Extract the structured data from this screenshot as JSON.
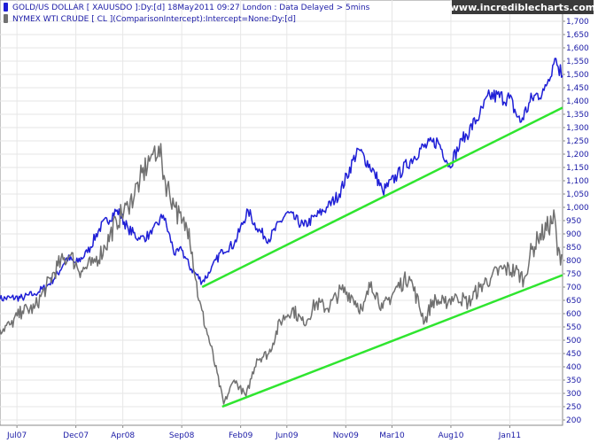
{
  "brand": "www.incrediblecharts.com",
  "chart_data": {
    "type": "line",
    "grid": true,
    "yaxis_position": "right",
    "ylim": [
      180,
      1780
    ],
    "yticks": [
      200,
      250,
      300,
      350,
      400,
      450,
      500,
      550,
      600,
      650,
      700,
      750,
      800,
      850,
      900,
      950,
      1000,
      1050,
      1100,
      1150,
      1200,
      1250,
      1300,
      1350,
      1400,
      1450,
      1500,
      1550,
      1600,
      1650,
      1700
    ],
    "ytick_labels": [
      "200",
      "250",
      "300",
      "350",
      "400",
      "450",
      "500",
      "550",
      "600",
      "650",
      "700",
      "750",
      "800",
      "850",
      "900",
      "950",
      "1,000",
      "1,050",
      "1,100",
      "1,150",
      "1,200",
      "1,250",
      "1,300",
      "1,350",
      "1,400",
      "1,450",
      "1,500",
      "1,550",
      "1,600",
      "1,650",
      "1,700"
    ],
    "x_range": [
      "2007-05-18",
      "2011-05-18"
    ],
    "xtick_labels": [
      "Jul07",
      "Dec07",
      "Apr08",
      "Sep08",
      "Feb09",
      "Jun09",
      "Nov09",
      "Mar10",
      "Aug10",
      "Jan11"
    ],
    "xtick_dates": [
      "2007-07-01",
      "2007-12-01",
      "2008-04-01",
      "2008-09-01",
      "2009-02-01",
      "2009-06-01",
      "2009-11-01",
      "2010-03-01",
      "2010-08-01",
      "2011-01-01"
    ],
    "legend": [
      {
        "label": "GOLD/US DOLLAR [ XAUUSDO ]:Dy:[d]   18May2011 09:27 London : Data Delayed > 5mins",
        "color": "#1f1fd6"
      },
      {
        "label": "NYMEX WTI CRUDE [ CL ](ComparisonIntercept):Intercept=None:Dy:[d]",
        "color": "#707070"
      }
    ],
    "series": [
      {
        "color": "#1f1fd6",
        "points": [
          [
            "2007-05-18",
            655
          ],
          [
            "2007-06-15",
            660
          ],
          [
            "2007-07-15",
            660
          ],
          [
            "2007-08-15",
            675
          ],
          [
            "2007-09-15",
            700
          ],
          [
            "2007-10-15",
            750
          ],
          [
            "2007-11-07",
            810
          ],
          [
            "2007-12-01",
            790
          ],
          [
            "2007-12-31",
            830
          ],
          [
            "2008-01-31",
            920
          ],
          [
            "2008-03-17",
            990
          ],
          [
            "2008-04-15",
            920
          ],
          [
            "2008-05-15",
            880
          ],
          [
            "2008-06-15",
            900
          ],
          [
            "2008-07-15",
            970
          ],
          [
            "2008-08-15",
            820
          ],
          [
            "2008-09-01",
            840
          ],
          [
            "2008-09-20",
            780
          ],
          [
            "2008-10-24",
            720
          ],
          [
            "2008-11-15",
            760
          ],
          [
            "2008-12-15",
            840
          ],
          [
            "2009-01-15",
            860
          ],
          [
            "2009-02-20",
            990
          ],
          [
            "2009-03-15",
            920
          ],
          [
            "2009-04-15",
            880
          ],
          [
            "2009-06-01",
            980
          ],
          [
            "2009-07-15",
            930
          ],
          [
            "2009-09-15",
            1000
          ],
          [
            "2009-10-15",
            1050
          ],
          [
            "2009-12-03",
            1220
          ],
          [
            "2010-01-15",
            1130
          ],
          [
            "2010-02-05",
            1060
          ],
          [
            "2010-03-15",
            1120
          ],
          [
            "2010-05-15",
            1220
          ],
          [
            "2010-06-28",
            1250
          ],
          [
            "2010-07-28",
            1160
          ],
          [
            "2010-08-31",
            1250
          ],
          [
            "2010-10-15",
            1350
          ],
          [
            "2010-11-10",
            1420
          ],
          [
            "2010-12-31",
            1410
          ],
          [
            "2011-01-28",
            1320
          ],
          [
            "2011-02-28",
            1410
          ],
          [
            "2011-03-31",
            1440
          ],
          [
            "2011-04-28",
            1560
          ],
          [
            "2011-05-18",
            1495
          ]
        ]
      },
      {
        "color": "#707070",
        "points": [
          [
            "2007-05-18",
            540
          ],
          [
            "2007-06-15",
            560
          ],
          [
            "2007-07-15",
            610
          ],
          [
            "2007-08-15",
            620
          ],
          [
            "2007-09-15",
            700
          ],
          [
            "2007-10-15",
            780
          ],
          [
            "2007-11-15",
            820
          ],
          [
            "2007-12-15",
            760
          ],
          [
            "2008-01-15",
            790
          ],
          [
            "2008-02-15",
            850
          ],
          [
            "2008-03-15",
            950
          ],
          [
            "2008-04-15",
            1000
          ],
          [
            "2008-05-15",
            1100
          ],
          [
            "2008-06-15",
            1200
          ],
          [
            "2008-07-03",
            1230
          ],
          [
            "2008-07-20",
            1100
          ],
          [
            "2008-08-15",
            1000
          ],
          [
            "2008-09-01",
            940
          ],
          [
            "2008-09-20",
            920
          ],
          [
            "2008-10-15",
            650
          ],
          [
            "2008-11-15",
            480
          ],
          [
            "2008-12-19",
            260
          ],
          [
            "2009-01-15",
            350
          ],
          [
            "2009-02-15",
            290
          ],
          [
            "2009-03-15",
            430
          ],
          [
            "2009-04-15",
            450
          ],
          [
            "2009-05-15",
            570
          ],
          [
            "2009-06-15",
            620
          ],
          [
            "2009-07-15",
            560
          ],
          [
            "2009-08-15",
            640
          ],
          [
            "2009-09-15",
            620
          ],
          [
            "2009-10-21",
            690
          ],
          [
            "2009-11-15",
            670
          ],
          [
            "2009-12-15",
            610
          ],
          [
            "2010-01-06",
            720
          ],
          [
            "2010-02-05",
            620
          ],
          [
            "2010-03-15",
            700
          ],
          [
            "2010-04-15",
            740
          ],
          [
            "2010-05-25",
            570
          ],
          [
            "2010-06-15",
            650
          ],
          [
            "2010-07-15",
            640
          ],
          [
            "2010-08-15",
            670
          ],
          [
            "2010-09-15",
            640
          ],
          [
            "2010-10-15",
            700
          ],
          [
            "2010-11-15",
            740
          ],
          [
            "2010-12-15",
            770
          ],
          [
            "2011-01-15",
            760
          ],
          [
            "2011-02-07",
            730
          ],
          [
            "2011-02-22",
            820
          ],
          [
            "2011-03-15",
            880
          ],
          [
            "2011-04-28",
            960
          ],
          [
            "2011-05-05",
            820
          ],
          [
            "2011-05-18",
            820
          ]
        ]
      }
    ],
    "trendlines": [
      {
        "color": "#2fe52f",
        "points": [
          [
            "2008-10-24",
            700
          ],
          [
            "2011-05-18",
            1375
          ]
        ]
      },
      {
        "color": "#2fe52f",
        "points": [
          [
            "2008-12-15",
            250
          ],
          [
            "2011-05-18",
            745
          ]
        ]
      }
    ]
  }
}
